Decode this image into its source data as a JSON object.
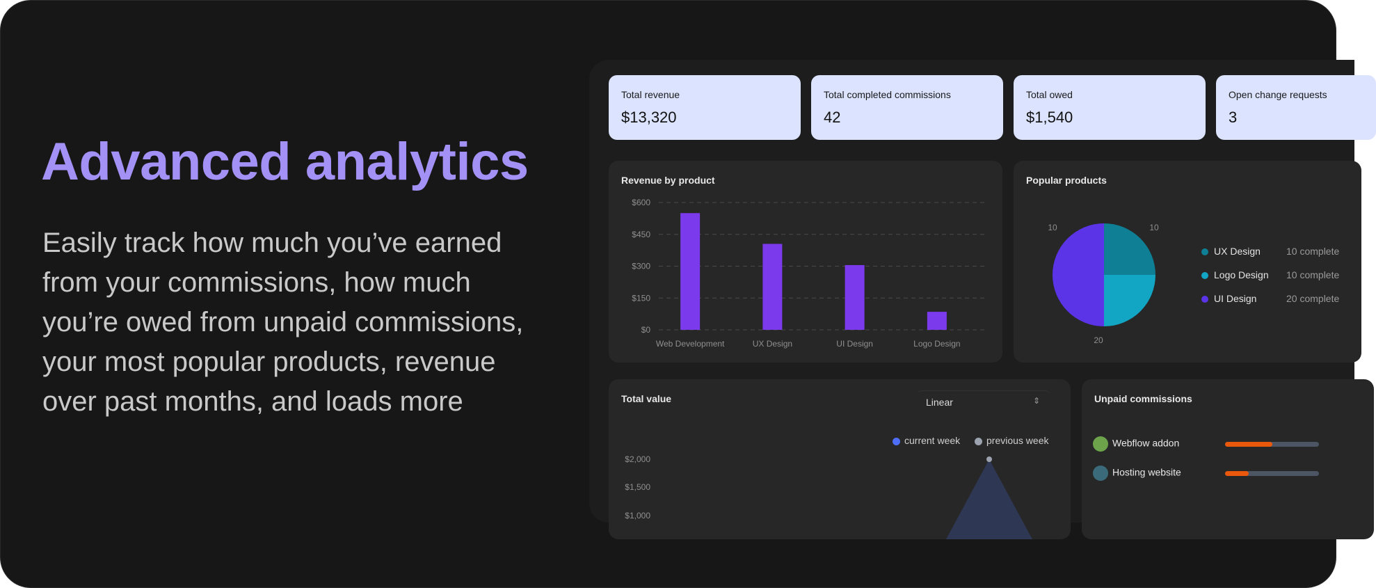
{
  "hero": {
    "title": "Advanced analytics",
    "description": "Easily track how much you’ve earned from your commissions, how much you’re owed from unpaid commissions, your most popular products, revenue over past months, and loads more"
  },
  "stats": [
    {
      "label": "Total revenue",
      "value": "$13,320"
    },
    {
      "label": "Total completed commissions",
      "value": "42"
    },
    {
      "label": "Total owed",
      "value": "$1,540"
    },
    {
      "label": "Open change requests",
      "value": "3"
    }
  ],
  "revenue_panel": {
    "title": "Revenue by product"
  },
  "popular_panel": {
    "title": "Popular products",
    "legend": [
      {
        "label": "UX Design",
        "count": "10 complete",
        "color": "#0e7f95"
      },
      {
        "label": "Logo Design",
        "count": "10 complete",
        "color": "#12a6c4"
      },
      {
        "label": "UI Design",
        "count": "20 complete",
        "color": "#5b34e8"
      }
    ]
  },
  "total_value_panel": {
    "title": "Total value",
    "scale_select": "Linear",
    "legend_current": "current week",
    "legend_previous": "previous week",
    "y_ticks": [
      "$2,000",
      "$1,500",
      "$1,000"
    ]
  },
  "unpaid_panel": {
    "title": "Unpaid commissions",
    "items": [
      {
        "name": "Webflow addon",
        "progress": 0.5
      },
      {
        "name": "Hosting website",
        "progress": 0.25
      }
    ]
  },
  "chart_data": [
    {
      "type": "bar",
      "title": "Revenue by product",
      "categories": [
        "Web Development",
        "UX Design",
        "UI Design",
        "Logo Design"
      ],
      "values": [
        550,
        405,
        305,
        85
      ],
      "ylim": [
        0,
        600
      ],
      "y_ticks": [
        "$600",
        "$450",
        "$300",
        "$150",
        "$0"
      ],
      "grid": true,
      "color": "#7c3aed"
    },
    {
      "type": "pie",
      "title": "Popular products",
      "labels": [
        "UX Design",
        "Logo Design",
        "UI Design"
      ],
      "values": [
        10,
        10,
        20
      ],
      "colors": [
        "#0e7f95",
        "#12a6c4",
        "#5b34e8"
      ]
    },
    {
      "type": "area",
      "title": "Total value",
      "series": [
        {
          "name": "previous week",
          "peak": 2000
        }
      ],
      "y_ticks": [
        "$2,000",
        "$1,500",
        "$1,000"
      ],
      "colors": {
        "current": "#4f6ef7",
        "previous": "#9ca3af"
      }
    }
  ],
  "icons": {
    "select_chevron": "updown-chevron-icon",
    "avatar_1": "avatar-icon",
    "avatar_2": "avatar-icon"
  },
  "colors": {
    "accent": "#a391f5",
    "card": "#dbe3fe",
    "progress": "#ea580c"
  }
}
